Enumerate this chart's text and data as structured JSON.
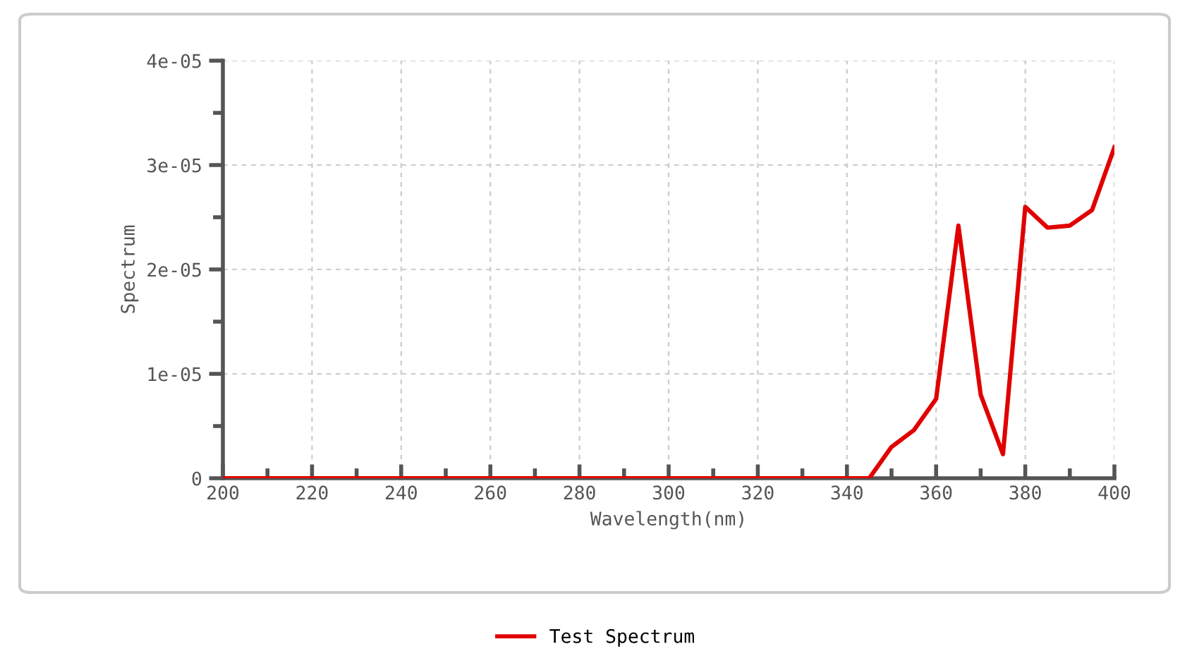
{
  "chart_data": {
    "type": "line",
    "xlabel": "Wavelength(nm)",
    "ylabel": "Spectrum",
    "x": [
      200,
      345,
      350,
      355,
      360,
      365,
      370,
      375,
      380,
      385,
      390,
      395,
      400
    ],
    "series": [
      {
        "name": "Test Spectrum",
        "color": "#e00000",
        "values": [
          0,
          0,
          3e-06,
          4.6e-06,
          7.6e-06,
          2.42e-05,
          8e-06,
          2.3e-06,
          2.6e-05,
          2.4e-05,
          2.42e-05,
          2.57e-05,
          3.17e-05
        ]
      }
    ],
    "xlim": [
      200,
      400
    ],
    "xticks": [
      200,
      220,
      240,
      260,
      280,
      300,
      320,
      340,
      360,
      380,
      400
    ],
    "ylim": [
      0,
      4e-05
    ],
    "yticks": [
      0,
      {
        "value": 1e-05,
        "label": "1e-05"
      },
      {
        "value": 2e-05,
        "label": "2e-05"
      },
      {
        "value": 3e-05,
        "label": "3e-05"
      },
      {
        "value": 4e-05,
        "label": "4e-05"
      }
    ],
    "grid": true,
    "legend": "bottom",
    "line_style": "solid",
    "marker": "none"
  }
}
